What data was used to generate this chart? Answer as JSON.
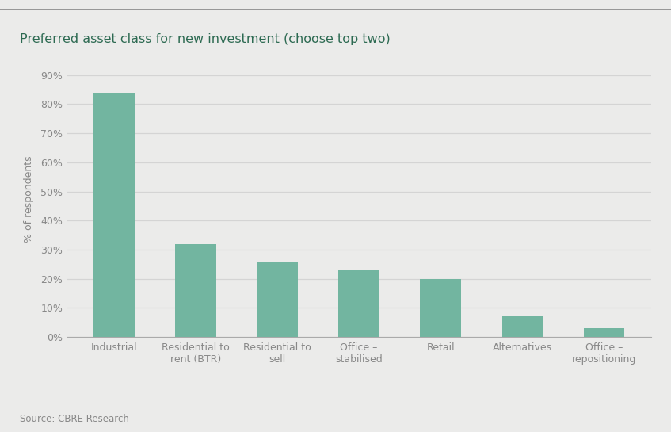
{
  "title": "Preferred asset class for new investment (choose top two)",
  "categories": [
    "Industrial",
    "Residential to\nrent (BTR)",
    "Residential to\nsell",
    "Office –\nstabilised",
    "Retail",
    "Alternatives",
    "Office –\nrepositioning"
  ],
  "values": [
    84,
    32,
    26,
    23,
    20,
    7,
    3
  ],
  "bar_color": "#72b5a0",
  "ylabel": "% of respondents",
  "ylim": [
    0,
    95
  ],
  "yticks": [
    0,
    10,
    20,
    30,
    40,
    50,
    60,
    70,
    80,
    90
  ],
  "ytick_labels": [
    "0%",
    "10%",
    "20%",
    "30%",
    "40%",
    "50%",
    "60%",
    "70%",
    "80%",
    "90%"
  ],
  "background_color": "#ebebea",
  "plot_bg_color": "#ebebea",
  "grid_color": "#d4d4d4",
  "title_color": "#2d6a52",
  "axis_label_color": "#888888",
  "tick_label_color": "#888888",
  "source_text": "Source: CBRE Research",
  "title_fontsize": 11.5,
  "label_fontsize": 9,
  "tick_fontsize": 9,
  "source_fontsize": 8.5,
  "bar_width": 0.5,
  "top_border_color": "#888888",
  "bottom_line_color": "#aaaaaa"
}
